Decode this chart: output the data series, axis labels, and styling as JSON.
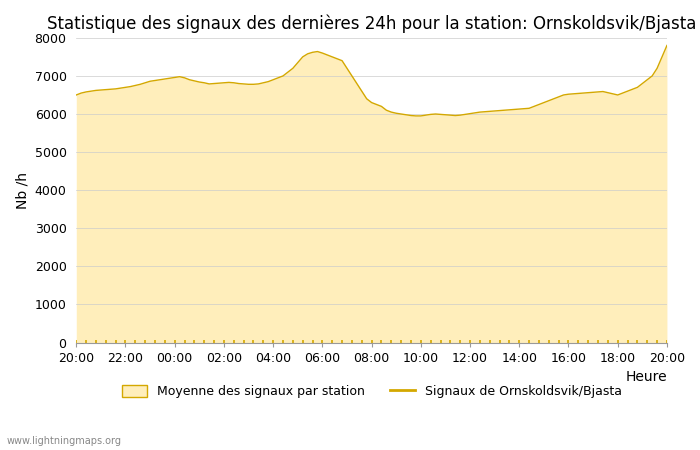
{
  "title": "Statistique des signaux des dernières 24h pour la station: Ornskoldsvik/Bjasta",
  "xlabel": "Heure",
  "ylabel": "Nb /h",
  "xlim_labels": [
    "20:00",
    "22:00",
    "00:00",
    "02:00",
    "04:00",
    "06:00",
    "08:00",
    "10:00",
    "12:00",
    "14:00",
    "16:00",
    "18:00",
    "20:00"
  ],
  "ylim": [
    0,
    8000
  ],
  "yticks": [
    0,
    1000,
    2000,
    3000,
    4000,
    5000,
    6000,
    7000,
    8000
  ],
  "fill_color": "#FFEEBB",
  "fill_edge_color": "#E8C870",
  "line_color": "#D4A800",
  "background_color": "#FFFFFF",
  "legend_fill_label": "Moyenne des signaux par station",
  "legend_line_label": "Signaux de Ornskoldsvik/Bjasta",
  "watermark": "www.lightningmaps.org",
  "title_fontsize": 12,
  "axis_fontsize": 10,
  "tick_fontsize": 9,
  "x_values": [
    0,
    1,
    2,
    3,
    4,
    5,
    6,
    7,
    8,
    9,
    10,
    11,
    12,
    13,
    14,
    15,
    16,
    17,
    18,
    19,
    20,
    21,
    22,
    23,
    24,
    25,
    26,
    27,
    28,
    29,
    30,
    31,
    32,
    33,
    34,
    35,
    36,
    37,
    38,
    39,
    40,
    41,
    42,
    43,
    44,
    45,
    46,
    47,
    48,
    49,
    50,
    51,
    52,
    53,
    54,
    55,
    56,
    57,
    58,
    59,
    60,
    61,
    62,
    63,
    64,
    65,
    66,
    67,
    68,
    69,
    70,
    71,
    72,
    73,
    74,
    75,
    76,
    77,
    78,
    79,
    80,
    81,
    82,
    83,
    84,
    85,
    86,
    87,
    88,
    89,
    90,
    91,
    92,
    93,
    94,
    95,
    96,
    97,
    98,
    99,
    100,
    101,
    102,
    103,
    104,
    105,
    106,
    107,
    108,
    109,
    110,
    111,
    112,
    113,
    114,
    115,
    116,
    117,
    118,
    119,
    120
  ],
  "y_values": [
    6500,
    6550,
    6580,
    6600,
    6620,
    6630,
    6640,
    6650,
    6660,
    6680,
    6700,
    6720,
    6750,
    6780,
    6820,
    6860,
    6880,
    6900,
    6920,
    6940,
    6960,
    6980,
    6950,
    6900,
    6870,
    6840,
    6820,
    6790,
    6800,
    6810,
    6820,
    6830,
    6820,
    6800,
    6790,
    6780,
    6780,
    6790,
    6820,
    6850,
    6900,
    6950,
    7000,
    7100,
    7200,
    7350,
    7500,
    7580,
    7620,
    7640,
    7600,
    7550,
    7500,
    7450,
    7400,
    7200,
    7000,
    6800,
    6600,
    6400,
    6300,
    6250,
    6200,
    6100,
    6050,
    6020,
    6000,
    5980,
    5960,
    5950,
    5950,
    5970,
    5990,
    6000,
    5990,
    5980,
    5970,
    5960,
    5970,
    5990,
    6010,
    6030,
    6050,
    6060,
    6070,
    6080,
    6090,
    6100,
    6110,
    6120,
    6130,
    6140,
    6150,
    6200,
    6250,
    6300,
    6350,
    6400,
    6450,
    6500,
    6520,
    6530,
    6540,
    6550,
    6560,
    6570,
    6580,
    6590,
    6560,
    6530,
    6500,
    6550,
    6600,
    6650,
    6700,
    6800,
    6900,
    7000,
    7200,
    7500,
    7800
  ]
}
